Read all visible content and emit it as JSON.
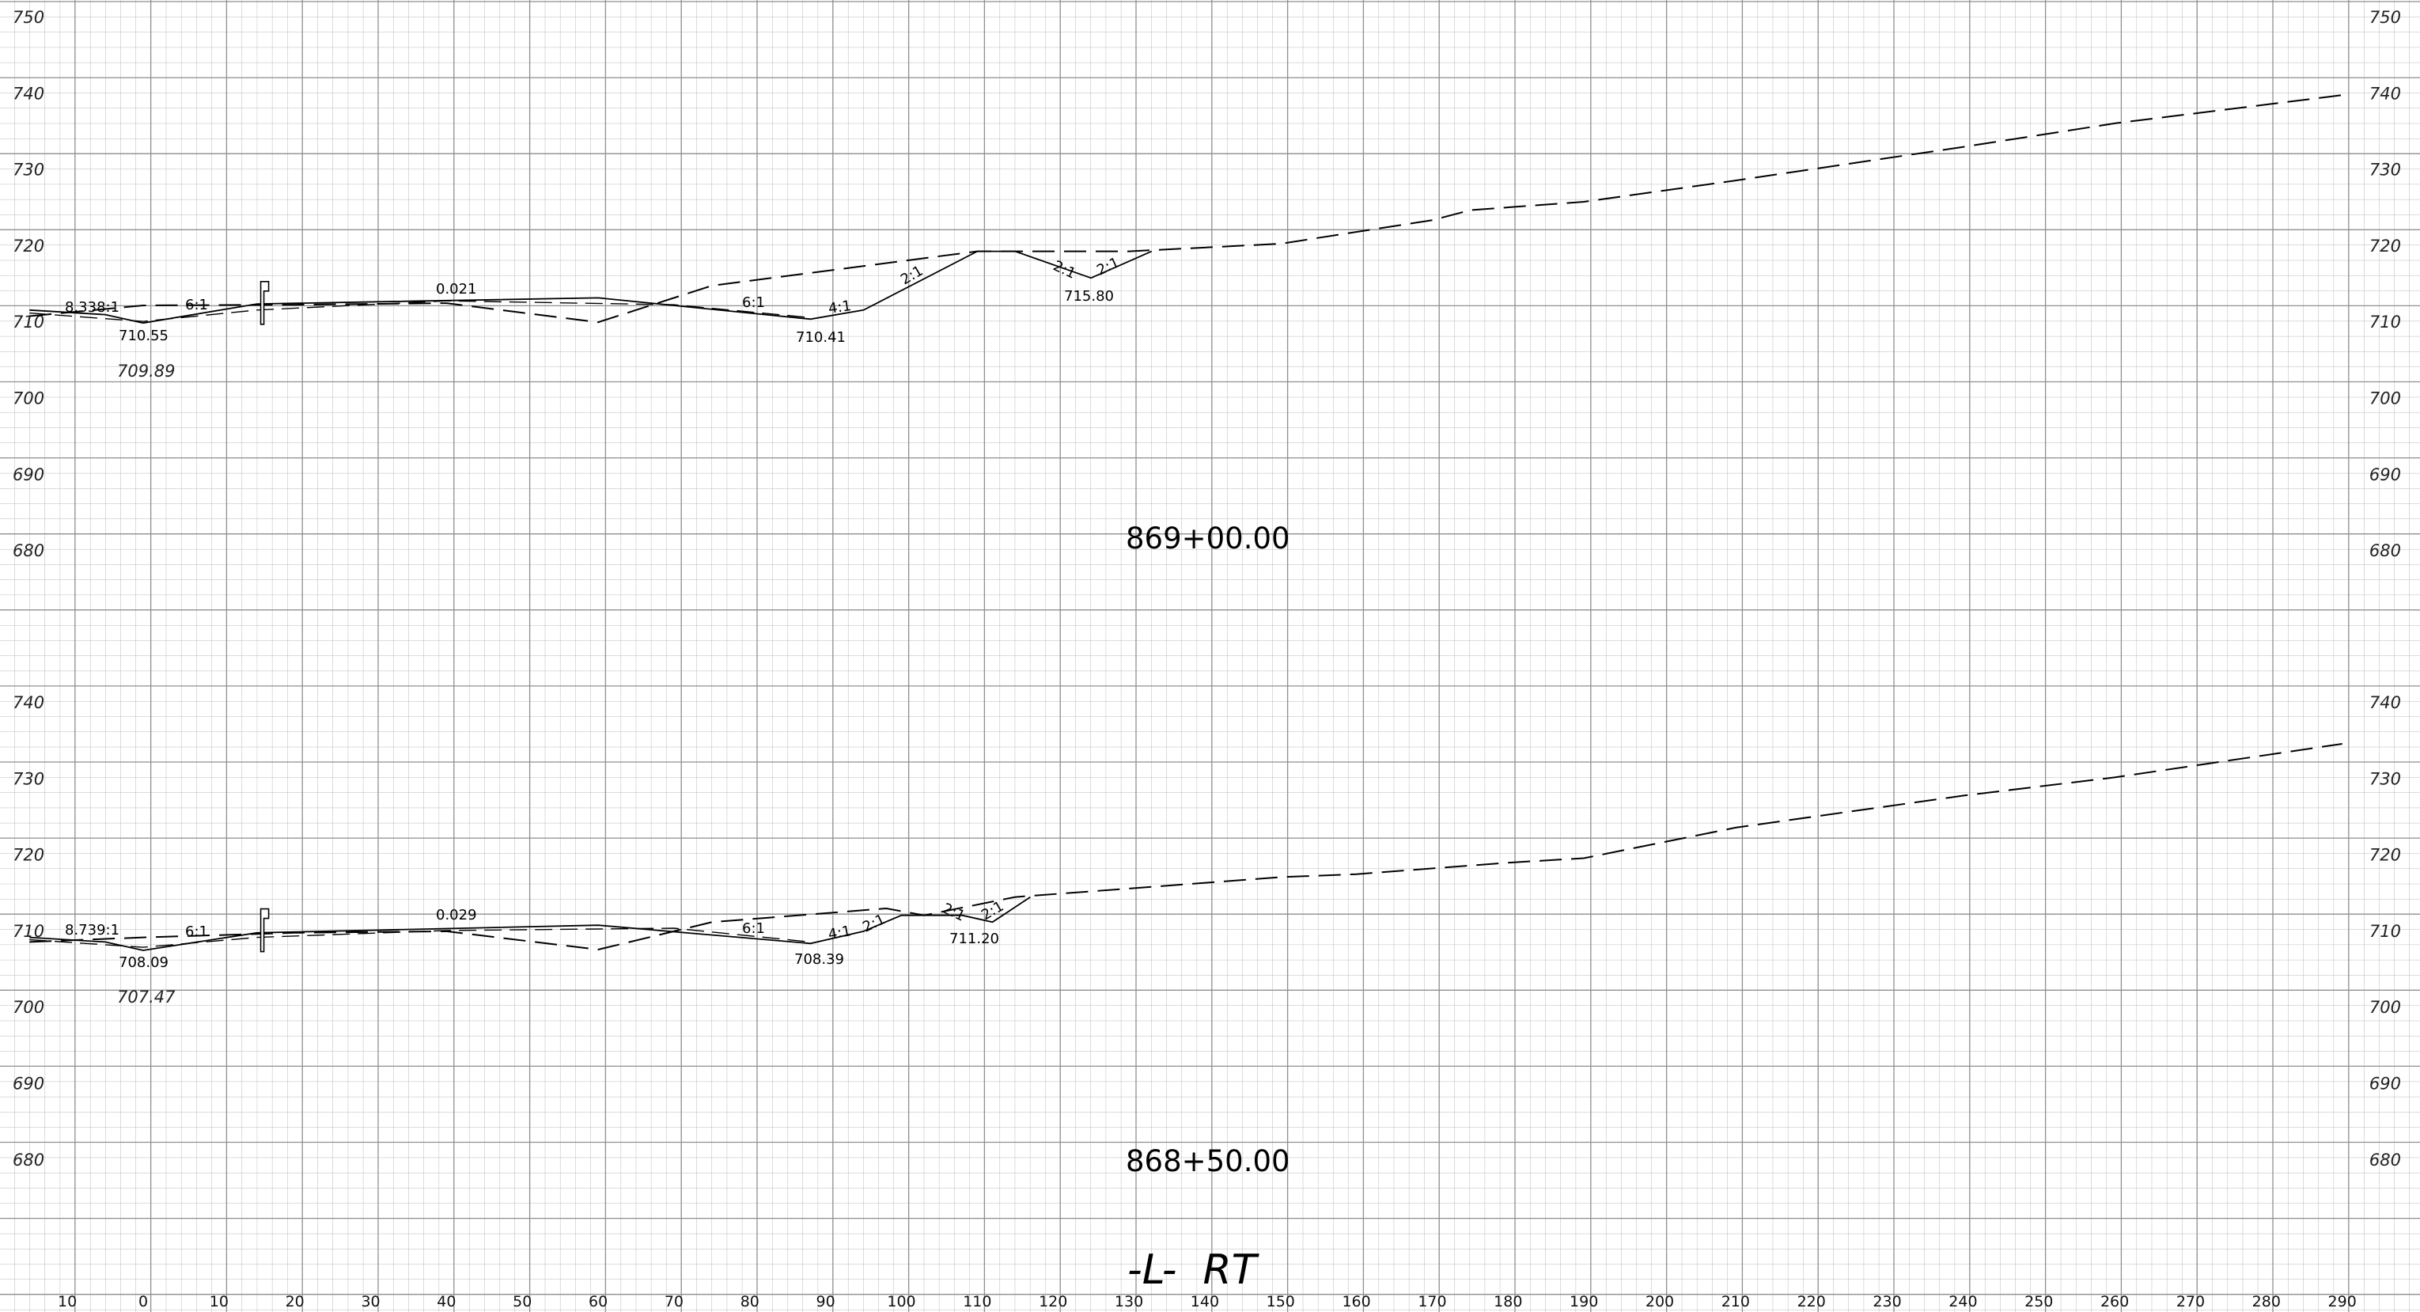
{
  "sheet_label": "-L-  RT",
  "x_axis": {
    "ticks": [
      {
        "label": "10",
        "val": -10
      },
      {
        "label": "0",
        "val": 0
      },
      {
        "label": "10",
        "val": 10
      },
      {
        "label": "20",
        "val": 20
      },
      {
        "label": "30",
        "val": 30
      },
      {
        "label": "40",
        "val": 40
      },
      {
        "label": "50",
        "val": 50
      },
      {
        "label": "60",
        "val": 60
      },
      {
        "label": "70",
        "val": 70
      },
      {
        "label": "80",
        "val": 80
      },
      {
        "label": "90",
        "val": 90
      },
      {
        "label": "100",
        "val": 100
      },
      {
        "label": "110",
        "val": 110
      },
      {
        "label": "120",
        "val": 120
      },
      {
        "label": "130",
        "val": 130
      },
      {
        "label": "140",
        "val": 140
      },
      {
        "label": "150",
        "val": 150
      },
      {
        "label": "160",
        "val": 160
      },
      {
        "label": "170",
        "val": 170
      },
      {
        "label": "180",
        "val": 180
      },
      {
        "label": "190",
        "val": 190
      },
      {
        "label": "200",
        "val": 200
      },
      {
        "label": "210",
        "val": 210
      },
      {
        "label": "220",
        "val": 220
      },
      {
        "label": "230",
        "val": 230
      },
      {
        "label": "240",
        "val": 240
      },
      {
        "label": "250",
        "val": 250
      },
      {
        "label": "260",
        "val": 260
      },
      {
        "label": "270",
        "val": 270
      },
      {
        "label": "280",
        "val": 280
      },
      {
        "label": "290",
        "val": 290
      }
    ]
  },
  "sections": [
    {
      "station": "869+00.00",
      "elevation_labels": [
        "750",
        "740",
        "730",
        "720",
        "710",
        "700",
        "690",
        "680"
      ],
      "elevation_values": [
        750,
        740,
        730,
        720,
        710,
        700,
        690,
        680
      ],
      "existing_ground": [
        [
          -15,
          710.8
        ],
        [
          0,
          712.2
        ],
        [
          20,
          712.3
        ],
        [
          40,
          712.5
        ],
        [
          60,
          710.0
        ],
        [
          75,
          714.8
        ],
        [
          110,
          719.3
        ],
        [
          130,
          719.3
        ],
        [
          150,
          720.3
        ],
        [
          170,
          723.4
        ],
        [
          175,
          724.7
        ],
        [
          190,
          725.8
        ],
        [
          210,
          728.6
        ],
        [
          240,
          733.0
        ],
        [
          260,
          736.1
        ],
        [
          290,
          739.8
        ]
      ],
      "proposed_section": [
        [
          -15,
          711.6
        ],
        [
          -5,
          711.0
        ],
        [
          0,
          709.9
        ],
        [
          15,
          712.4
        ],
        [
          60,
          713.2
        ],
        [
          88,
          710.4
        ],
        [
          95,
          711.6
        ],
        [
          110,
          719.3
        ],
        [
          115,
          719.3
        ],
        [
          125,
          715.8
        ],
        [
          133,
          719.3
        ]
      ],
      "subgrade": [
        [
          -15,
          711.2
        ],
        [
          0,
          710.1
        ],
        [
          15,
          711.6
        ],
        [
          40,
          712.8
        ],
        [
          70,
          712.3
        ],
        [
          88,
          710.6
        ]
      ],
      "labels": {
        "left_slope": "8.338:1",
        "left_elev": "710.55",
        "existing_elev": "709.89",
        "slope_6_1_left": "6:1",
        "crown": "0.021",
        "slope_6_1_right": "6:1",
        "slope_4_1": "4:1",
        "ditch_elev": "710.41",
        "slope_2_1_a": "2:1",
        "slope_2_1_b": "2:1",
        "slope_2_1_c": "2:1",
        "ditch2_elev": "715.80"
      }
    },
    {
      "station": "868+50.00",
      "elevation_labels": [
        "740",
        "730",
        "720",
        "710",
        "700",
        "690",
        "680"
      ],
      "elevation_values": [
        740,
        730,
        720,
        710,
        700,
        690,
        680
      ],
      "existing_ground": [
        [
          -15,
          708.6
        ],
        [
          0,
          709.2
        ],
        [
          20,
          709.8
        ],
        [
          40,
          710.0
        ],
        [
          60,
          707.6
        ],
        [
          75,
          711.2
        ],
        [
          98,
          713.0
        ],
        [
          103,
          712.1
        ],
        [
          115,
          714.5
        ],
        [
          150,
          717.1
        ],
        [
          160,
          717.5
        ],
        [
          180,
          719.0
        ],
        [
          190,
          719.6
        ],
        [
          210,
          723.6
        ],
        [
          240,
          727.8
        ],
        [
          260,
          730.2
        ],
        [
          290,
          734.6
        ]
      ],
      "proposed_section": [
        [
          -15,
          709.2
        ],
        [
          -5,
          708.6
        ],
        [
          0,
          707.5
        ],
        [
          15,
          709.8
        ],
        [
          60,
          710.8
        ],
        [
          88,
          708.4
        ],
        [
          95,
          710.0
        ],
        [
          100,
          712.1
        ],
        [
          108,
          712.1
        ],
        [
          112,
          711.2
        ],
        [
          117,
          714.5
        ]
      ],
      "subgrade": [
        [
          -15,
          708.9
        ],
        [
          0,
          707.9
        ],
        [
          15,
          709.2
        ],
        [
          40,
          710.1
        ],
        [
          70,
          710.4
        ],
        [
          88,
          708.6
        ]
      ],
      "labels": {
        "left_slope": "8.739:1",
        "left_elev": "708.09",
        "existing_elev": "707.47",
        "slope_6_1_left": "6:1",
        "crown": "0.029",
        "slope_6_1_right": "6:1",
        "slope_4_1": "4:1",
        "ditch_elev": "708.39",
        "slope_2_1_a": "2:1",
        "slope_2_1_b": "2:1",
        "slope_2_1_c": "2:1",
        "ditch2_elev": "711.20"
      }
    }
  ]
}
